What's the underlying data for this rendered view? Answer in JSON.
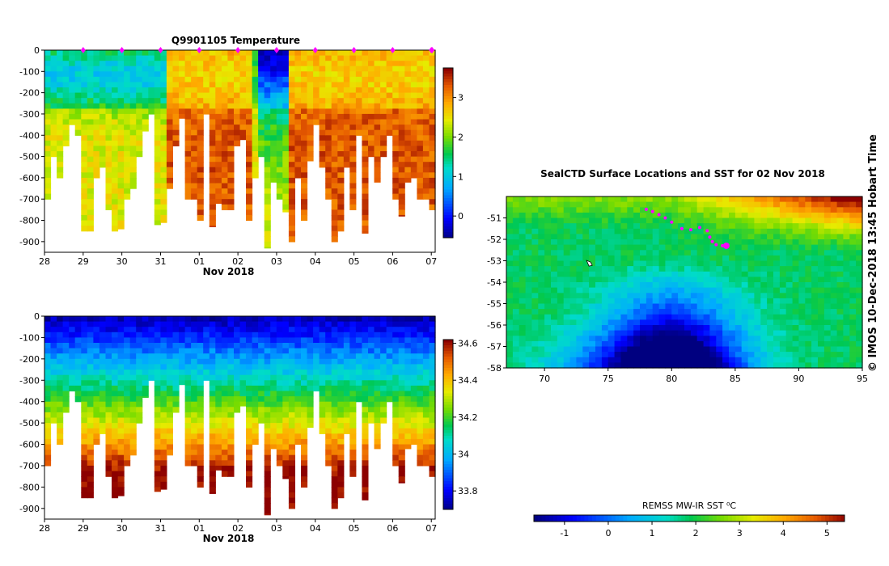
{
  "chart_data": [
    {
      "type": "heatmap",
      "title": "Q9901105  Temperature",
      "variable": "temperature",
      "xlabel": "Nov 2018",
      "x_tick_labels": [
        "28",
        "29",
        "30",
        "31",
        "01",
        "02",
        "03",
        "04",
        "05",
        "06",
        "07"
      ],
      "y_tick_labels": [
        "0",
        "-100",
        "-200",
        "-300",
        "-400",
        "-500",
        "-600",
        "-700",
        "-800",
        "-900"
      ],
      "xlim": [
        28,
        38.1
      ],
      "ylim": [
        -950,
        0
      ],
      "colorbar": {
        "min": -0.55,
        "max": 3.75,
        "ticks": [
          "0",
          "1",
          "2",
          "3"
        ]
      },
      "profile_max_depths": [
        -700,
        -500,
        -600,
        -450,
        -350,
        -400,
        -850,
        -850,
        -600,
        -550,
        -750,
        -850,
        -840,
        -700,
        -650,
        -500,
        -380,
        -300,
        -820,
        -810,
        -650,
        -450,
        -320,
        -700,
        -700,
        -800,
        -300,
        -830,
        -720,
        -750,
        -750,
        -450,
        -420,
        -800,
        -600,
        -500,
        -930,
        -620,
        -700,
        -760,
        -900,
        -600,
        -800,
        -520,
        -350,
        -550,
        -700,
        -900,
        -850,
        -550,
        -750,
        -400,
        -860,
        -500,
        -620,
        -500,
        -400,
        -700,
        -780,
        -620,
        -600,
        -700,
        -700,
        -750
      ],
      "surface_markers_x": [
        29,
        30,
        31,
        32,
        33,
        34,
        35,
        36,
        37,
        38,
        38.02
      ]
    },
    {
      "type": "heatmap",
      "title": "",
      "variable": "salinity",
      "xlabel": "Nov 2018",
      "x_tick_labels": [
        "28",
        "29",
        "30",
        "31",
        "01",
        "02",
        "03",
        "04",
        "05",
        "06",
        "07"
      ],
      "y_tick_labels": [
        "0",
        "-100",
        "-200",
        "-300",
        "-400",
        "-500",
        "-600",
        "-700",
        "-800",
        "-900"
      ],
      "xlim": [
        28,
        38.1
      ],
      "ylim": [
        -950,
        0
      ],
      "colorbar": {
        "min": 33.7,
        "max": 34.62,
        "ticks": [
          "33.8",
          "34",
          "34.2",
          "34.4",
          "34.6"
        ]
      }
    },
    {
      "type": "heatmap",
      "title": "SealCTD Surface Locations and SST for 02 Nov 2018",
      "variable": "sea surface temperature",
      "x_tick_labels": [
        "70",
        "75",
        "80",
        "85",
        "90",
        "95"
      ],
      "y_tick_labels": [
        "-51",
        "-52",
        "-53",
        "-54",
        "-55",
        "-56",
        "-57",
        "-58"
      ],
      "xlim": [
        67,
        95
      ],
      "ylim": [
        -58,
        -50
      ],
      "colorbar": {
        "label": "REMSS MW-IR SST ⁰C",
        "min": -1.7,
        "max": 5.4,
        "ticks": [
          "-1",
          "0",
          "1",
          "2",
          "3",
          "4",
          "5"
        ]
      },
      "track_lon": [
        78.0,
        78.5,
        79.0,
        79.5,
        80.0,
        80.8,
        81.5,
        82.2,
        82.8,
        83.0,
        83.2,
        83.5,
        84.0
      ],
      "track_lat": [
        -50.6,
        -50.7,
        -50.85,
        -51.0,
        -51.2,
        -51.5,
        -51.55,
        -51.45,
        -51.6,
        -51.9,
        -52.1,
        -52.25,
        -52.3
      ],
      "current_position": {
        "lon": 84.3,
        "lat": -52.3
      },
      "island": {
        "lon": 73.5,
        "lat": -53.1
      }
    }
  ],
  "credit": "© IMOS 10-Dec-2018 13:45 Hobart Time",
  "colors": {
    "marker": "#ff00ff",
    "axis": "#000000",
    "background": "#ffffff"
  }
}
